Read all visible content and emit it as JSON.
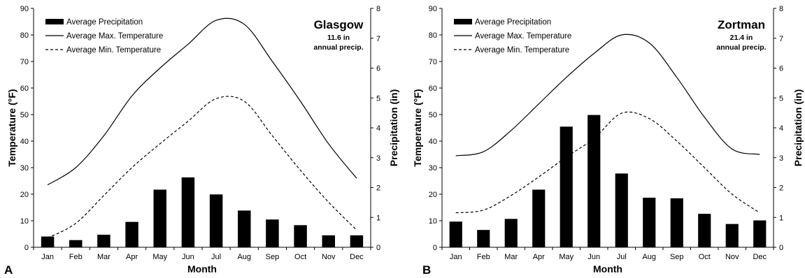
{
  "chart_data": [
    {
      "panel_label": "A",
      "type": "bar+line",
      "station": "Glasgow",
      "annual_precip": "11.6 in",
      "annual_precip_label": "annual precip.",
      "xlabel": "Month",
      "ylabel_left": "Temperature (°F)",
      "ylabel_right": "Precipitation (in)",
      "ylim_left": [
        0,
        90
      ],
      "yticks_left": [
        "0",
        "10",
        "20",
        "30",
        "40",
        "50",
        "60",
        "70",
        "80",
        "90"
      ],
      "ylim_right": [
        0,
        8
      ],
      "yticks_right": [
        "0",
        "1",
        "2",
        "3",
        "4",
        "5",
        "6",
        "7",
        "8"
      ],
      "categories": [
        "Jan",
        "Feb",
        "Mar",
        "Apr",
        "May",
        "Jun",
        "Jul",
        "Aug",
        "Sep",
        "Oct",
        "Nov",
        "Dec"
      ],
      "legend": {
        "precip": "Average Precipitation",
        "max": "Average Max. Temperature",
        "min": "Average Min. Temperature"
      },
      "series": [
        {
          "name": "Average Precipitation",
          "axis": "right",
          "kind": "bar",
          "values": [
            0.36,
            0.24,
            0.42,
            0.85,
            1.93,
            2.34,
            1.77,
            1.23,
            0.93,
            0.74,
            0.4,
            0.4
          ]
        },
        {
          "name": "Average Max. Temperature",
          "axis": "left",
          "kind": "line",
          "values": [
            23.5,
            30,
            42,
            57,
            67.5,
            76.5,
            85.5,
            84,
            70,
            55,
            39,
            26
          ]
        },
        {
          "name": "Average Min. Temperature",
          "axis": "left",
          "kind": "line",
          "values": [
            3.5,
            9,
            19.5,
            30,
            39,
            47.5,
            56,
            55,
            42,
            29,
            17,
            6.5
          ]
        }
      ]
    },
    {
      "panel_label": "B",
      "type": "bar+line",
      "station": "Zortman",
      "annual_precip": "21.4 in",
      "annual_precip_label": "annual precip.",
      "xlabel": "Month",
      "ylabel_left": "Temperature (°F)",
      "ylabel_right": "Precipitation (in)",
      "ylim_left": [
        0,
        90
      ],
      "yticks_left": [
        "0",
        "10",
        "20",
        "30",
        "40",
        "50",
        "60",
        "70",
        "80",
        "90"
      ],
      "ylim_right": [
        0,
        8
      ],
      "yticks_right": [
        "0",
        "1",
        "2",
        "3",
        "4",
        "5",
        "6",
        "7",
        "8"
      ],
      "categories": [
        "Jan",
        "Feb",
        "Mar",
        "Apr",
        "May",
        "Jun",
        "Jul",
        "Aug",
        "Sep",
        "Oct",
        "Nov",
        "Dec"
      ],
      "legend": {
        "precip": "Average Precipitation",
        "max": "Average Max. Temperature",
        "min": "Average Min. Temperature"
      },
      "series": [
        {
          "name": "Average Precipitation",
          "axis": "right",
          "kind": "bar",
          "values": [
            0.86,
            0.58,
            0.95,
            1.93,
            4.04,
            4.43,
            2.47,
            1.66,
            1.64,
            1.12,
            0.78,
            0.9
          ]
        },
        {
          "name": "Average Max. Temperature",
          "axis": "left",
          "kind": "line",
          "values": [
            34.5,
            36,
            44,
            54,
            64,
            73,
            80,
            77,
            64,
            49,
            37,
            35
          ]
        },
        {
          "name": "Average Min. Temperature",
          "axis": "left",
          "kind": "line",
          "values": [
            13,
            14,
            19.5,
            26.5,
            34,
            41,
            50.5,
            48.5,
            40,
            30,
            20,
            13
          ]
        }
      ]
    }
  ]
}
